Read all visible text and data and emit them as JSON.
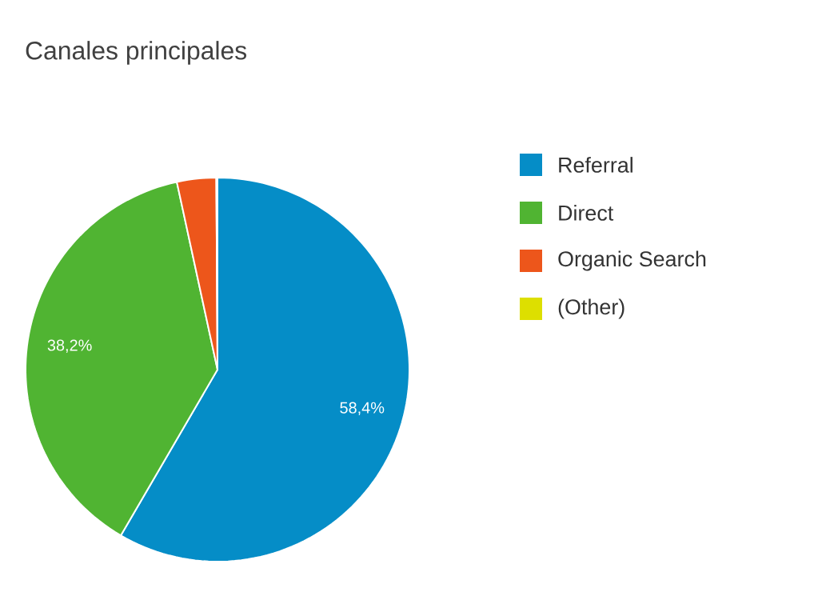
{
  "chart_data": {
    "type": "pie",
    "title": "Canales principales",
    "categories": [
      "Referral",
      "Direct",
      "Organic Search",
      "(Other)"
    ],
    "values": [
      58.4,
      38.2,
      3.3,
      0.1
    ],
    "colors": [
      "#058dc7",
      "#50b432",
      "#ed561b",
      "#dddf00"
    ],
    "value_labels": [
      "58,4%",
      "38,2%",
      null,
      null
    ],
    "legend": "right"
  }
}
